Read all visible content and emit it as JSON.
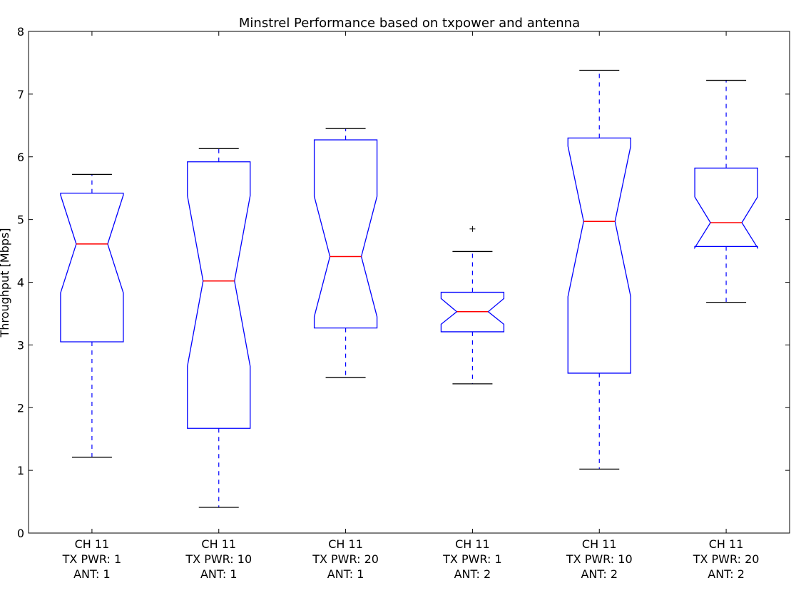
{
  "chart_data": {
    "type": "boxplot",
    "title": "Minstrel Performance based on txpower and antenna",
    "ylabel": "Throughput [Mbps]",
    "xlabel": "",
    "ylim": [
      0,
      8
    ],
    "yticks": [
      "0",
      "1",
      "2",
      "3",
      "4",
      "5",
      "6",
      "7",
      "8"
    ],
    "grid": false,
    "notched": true,
    "categories": [
      [
        "CH 11",
        "TX PWR: 1",
        "ANT: 1"
      ],
      [
        "CH 11",
        "TX PWR: 10",
        "ANT: 1"
      ],
      [
        "CH 11",
        "TX PWR: 20",
        "ANT: 1"
      ],
      [
        "CH 11",
        "TX PWR: 1",
        "ANT: 2"
      ],
      [
        "CH 11",
        "TX PWR: 10",
        "ANT: 2"
      ],
      [
        "CH 11",
        "TX PWR: 20",
        "ANT: 2"
      ]
    ],
    "boxes": [
      {
        "whisker_low": 1.21,
        "q1": 3.05,
        "notch_low": 3.83,
        "median": 4.61,
        "notch_high": 5.39,
        "q3": 5.42,
        "whisker_high": 5.72,
        "outliers": []
      },
      {
        "whisker_low": 0.41,
        "q1": 1.67,
        "notch_low": 2.66,
        "median": 4.02,
        "notch_high": 5.38,
        "q3": 5.92,
        "whisker_high": 6.13,
        "outliers": []
      },
      {
        "whisker_low": 2.48,
        "q1": 3.27,
        "notch_low": 3.45,
        "median": 4.41,
        "notch_high": 5.37,
        "q3": 6.27,
        "whisker_high": 6.45,
        "outliers": []
      },
      {
        "whisker_low": 2.38,
        "q1": 3.21,
        "notch_low": 3.33,
        "median": 3.53,
        "notch_high": 3.74,
        "q3": 3.84,
        "whisker_high": 4.49,
        "outliers": [
          4.85
        ]
      },
      {
        "whisker_low": 1.02,
        "q1": 2.55,
        "notch_low": 3.77,
        "median": 4.97,
        "notch_high": 6.17,
        "q3": 6.3,
        "whisker_high": 7.38,
        "outliers": []
      },
      {
        "whisker_low": 3.68,
        "q1": 4.57,
        "notch_low": 4.55,
        "median": 4.95,
        "notch_high": 5.36,
        "q3": 5.82,
        "whisker_high": 7.22,
        "outliers": []
      }
    ],
    "colors": {
      "box": "#0000ff",
      "median": "#ff0000",
      "cap": "#000000",
      "axes": "#000000"
    }
  }
}
